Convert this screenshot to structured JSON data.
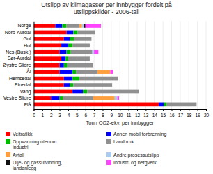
{
  "chart_data": {
    "type": "bar",
    "orientation": "horizontal",
    "stacked": true,
    "title": "Utslipp av klimagasser per innbygger fordelt på\nutslippskilder - 2006-tall",
    "xlabel": "Tonn CO2-ekv. per innbygger",
    "categories": [
      "Norge",
      "Nord-Aurdal",
      "Gol",
      "Hol",
      "Nes (Busk.)",
      "Sør-Aurdal",
      "Øystre Slidre",
      "Ål",
      "Hemsedal",
      "Etnedal",
      "Vang",
      "Vestre Slidre",
      "Flå"
    ],
    "series": [
      {
        "name": "Veitrafikk",
        "color": "#FF0000",
        "values": [
          2.5,
          3.8,
          3.5,
          3.2,
          3.0,
          3.2,
          3.0,
          3.0,
          3.5,
          3.5,
          4.5,
          2.0,
          14.5
        ]
      },
      {
        "name": "Annen mobil forbrenning",
        "color": "#0000FF",
        "values": [
          0.8,
          0.8,
          0.7,
          0.8,
          0.8,
          0.5,
          0.5,
          1.5,
          1.0,
          0.7,
          1.2,
          1.0,
          0.6
        ]
      },
      {
        "name": "Oppvarming utenom\nindustri",
        "color": "#00BB00",
        "values": [
          0.5,
          0.5,
          0.5,
          0.5,
          0.5,
          0.3,
          0.4,
          0.4,
          0.8,
          0.4,
          0.5,
          0.4,
          0.3
        ]
      },
      {
        "name": "Landbruk",
        "color": "#909090",
        "values": [
          1.5,
          2.0,
          2.0,
          2.0,
          2.5,
          2.5,
          3.0,
          2.5,
          4.5,
          4.5,
          6.0,
          3.5,
          3.5
        ]
      },
      {
        "name": "Avfall",
        "color": "#FFA040",
        "values": [
          0.3,
          0.0,
          0.0,
          0.0,
          0.0,
          0.0,
          0.0,
          1.5,
          0.0,
          0.0,
          0.0,
          2.5,
          0.0
        ]
      },
      {
        "name": "Andre prosessutslipp",
        "color": "#AACCEE",
        "values": [
          0.2,
          0.0,
          0.0,
          0.0,
          0.2,
          0.0,
          0.0,
          0.0,
          0.0,
          0.0,
          0.0,
          0.3,
          0.0
        ]
      },
      {
        "name": "Olje- og gassutvinning,\nlandanlegg",
        "color": "#111111",
        "values": [
          0.2,
          0.0,
          0.0,
          0.0,
          0.0,
          0.0,
          0.0,
          0.0,
          0.0,
          0.0,
          0.0,
          0.0,
          0.0
        ]
      },
      {
        "name": "Industri og bergverk",
        "color": "#FF44FF",
        "values": [
          1.8,
          0.0,
          0.0,
          0.0,
          0.5,
          0.0,
          0.0,
          0.3,
          0.0,
          0.0,
          0.0,
          0.2,
          0.0
        ]
      }
    ],
    "xlim": [
      0,
      20
    ],
    "xticks": [
      0,
      1,
      2,
      3,
      4,
      5,
      6,
      7,
      8,
      9,
      10,
      11,
      12,
      13,
      14,
      15,
      16,
      17,
      18,
      19,
      20
    ],
    "grid": true,
    "legend": "bottom"
  }
}
